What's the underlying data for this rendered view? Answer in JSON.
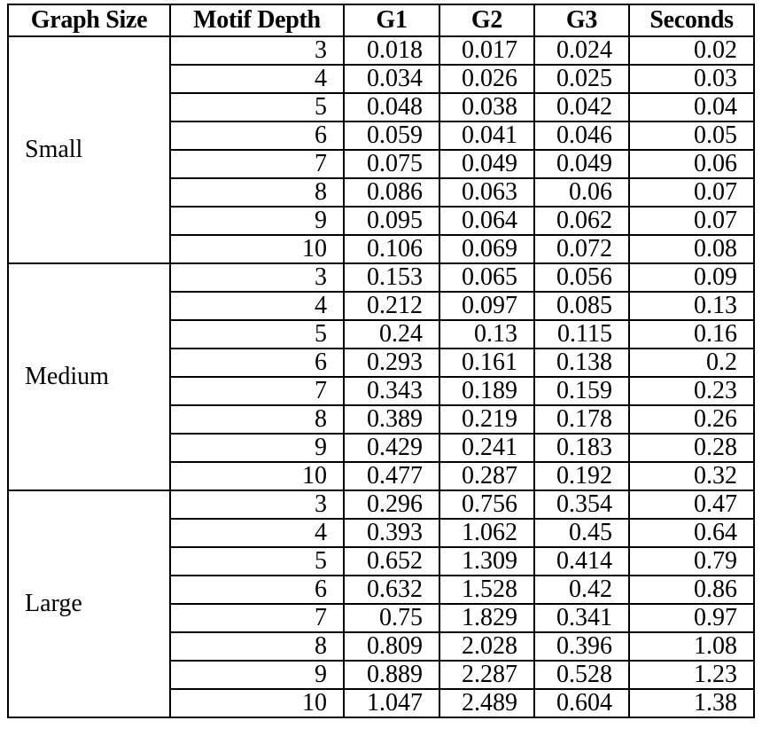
{
  "table": {
    "headers": [
      "Graph Size",
      "Motif Depth",
      "G1",
      "G2",
      "G3",
      "Seconds"
    ],
    "groups": [
      {
        "size": "Small",
        "rows": [
          [
            "3",
            "0.018",
            "0.017",
            "0.024",
            "0.02"
          ],
          [
            "4",
            "0.034",
            "0.026",
            "0.025",
            "0.03"
          ],
          [
            "5",
            "0.048",
            "0.038",
            "0.042",
            "0.04"
          ],
          [
            "6",
            "0.059",
            "0.041",
            "0.046",
            "0.05"
          ],
          [
            "7",
            "0.075",
            "0.049",
            "0.049",
            "0.06"
          ],
          [
            "8",
            "0.086",
            "0.063",
            "0.06",
            "0.07"
          ],
          [
            "9",
            "0.095",
            "0.064",
            "0.062",
            "0.07"
          ],
          [
            "10",
            "0.106",
            "0.069",
            "0.072",
            "0.08"
          ]
        ]
      },
      {
        "size": "Medium",
        "rows": [
          [
            "3",
            "0.153",
            "0.065",
            "0.056",
            "0.09"
          ],
          [
            "4",
            "0.212",
            "0.097",
            "0.085",
            "0.13"
          ],
          [
            "5",
            "0.24",
            "0.13",
            "0.115",
            "0.16"
          ],
          [
            "6",
            "0.293",
            "0.161",
            "0.138",
            "0.2"
          ],
          [
            "7",
            "0.343",
            "0.189",
            "0.159",
            "0.23"
          ],
          [
            "8",
            "0.389",
            "0.219",
            "0.178",
            "0.26"
          ],
          [
            "9",
            "0.429",
            "0.241",
            "0.183",
            "0.28"
          ],
          [
            "10",
            "0.477",
            "0.287",
            "0.192",
            "0.32"
          ]
        ]
      },
      {
        "size": "Large",
        "rows": [
          [
            "3",
            "0.296",
            "0.756",
            "0.354",
            "0.47"
          ],
          [
            "4",
            "0.393",
            "1.062",
            "0.45",
            "0.64"
          ],
          [
            "5",
            "0.652",
            "1.309",
            "0.414",
            "0.79"
          ],
          [
            "6",
            "0.632",
            "1.528",
            "0.42",
            "0.86"
          ],
          [
            "7",
            "0.75",
            "1.829",
            "0.341",
            "0.97"
          ],
          [
            "8",
            "0.809",
            "2.028",
            "0.396",
            "1.08"
          ],
          [
            "9",
            "0.889",
            "2.287",
            "0.528",
            "1.23"
          ],
          [
            "10",
            "1.047",
            "2.489",
            "0.604",
            "1.38"
          ]
        ]
      }
    ]
  }
}
